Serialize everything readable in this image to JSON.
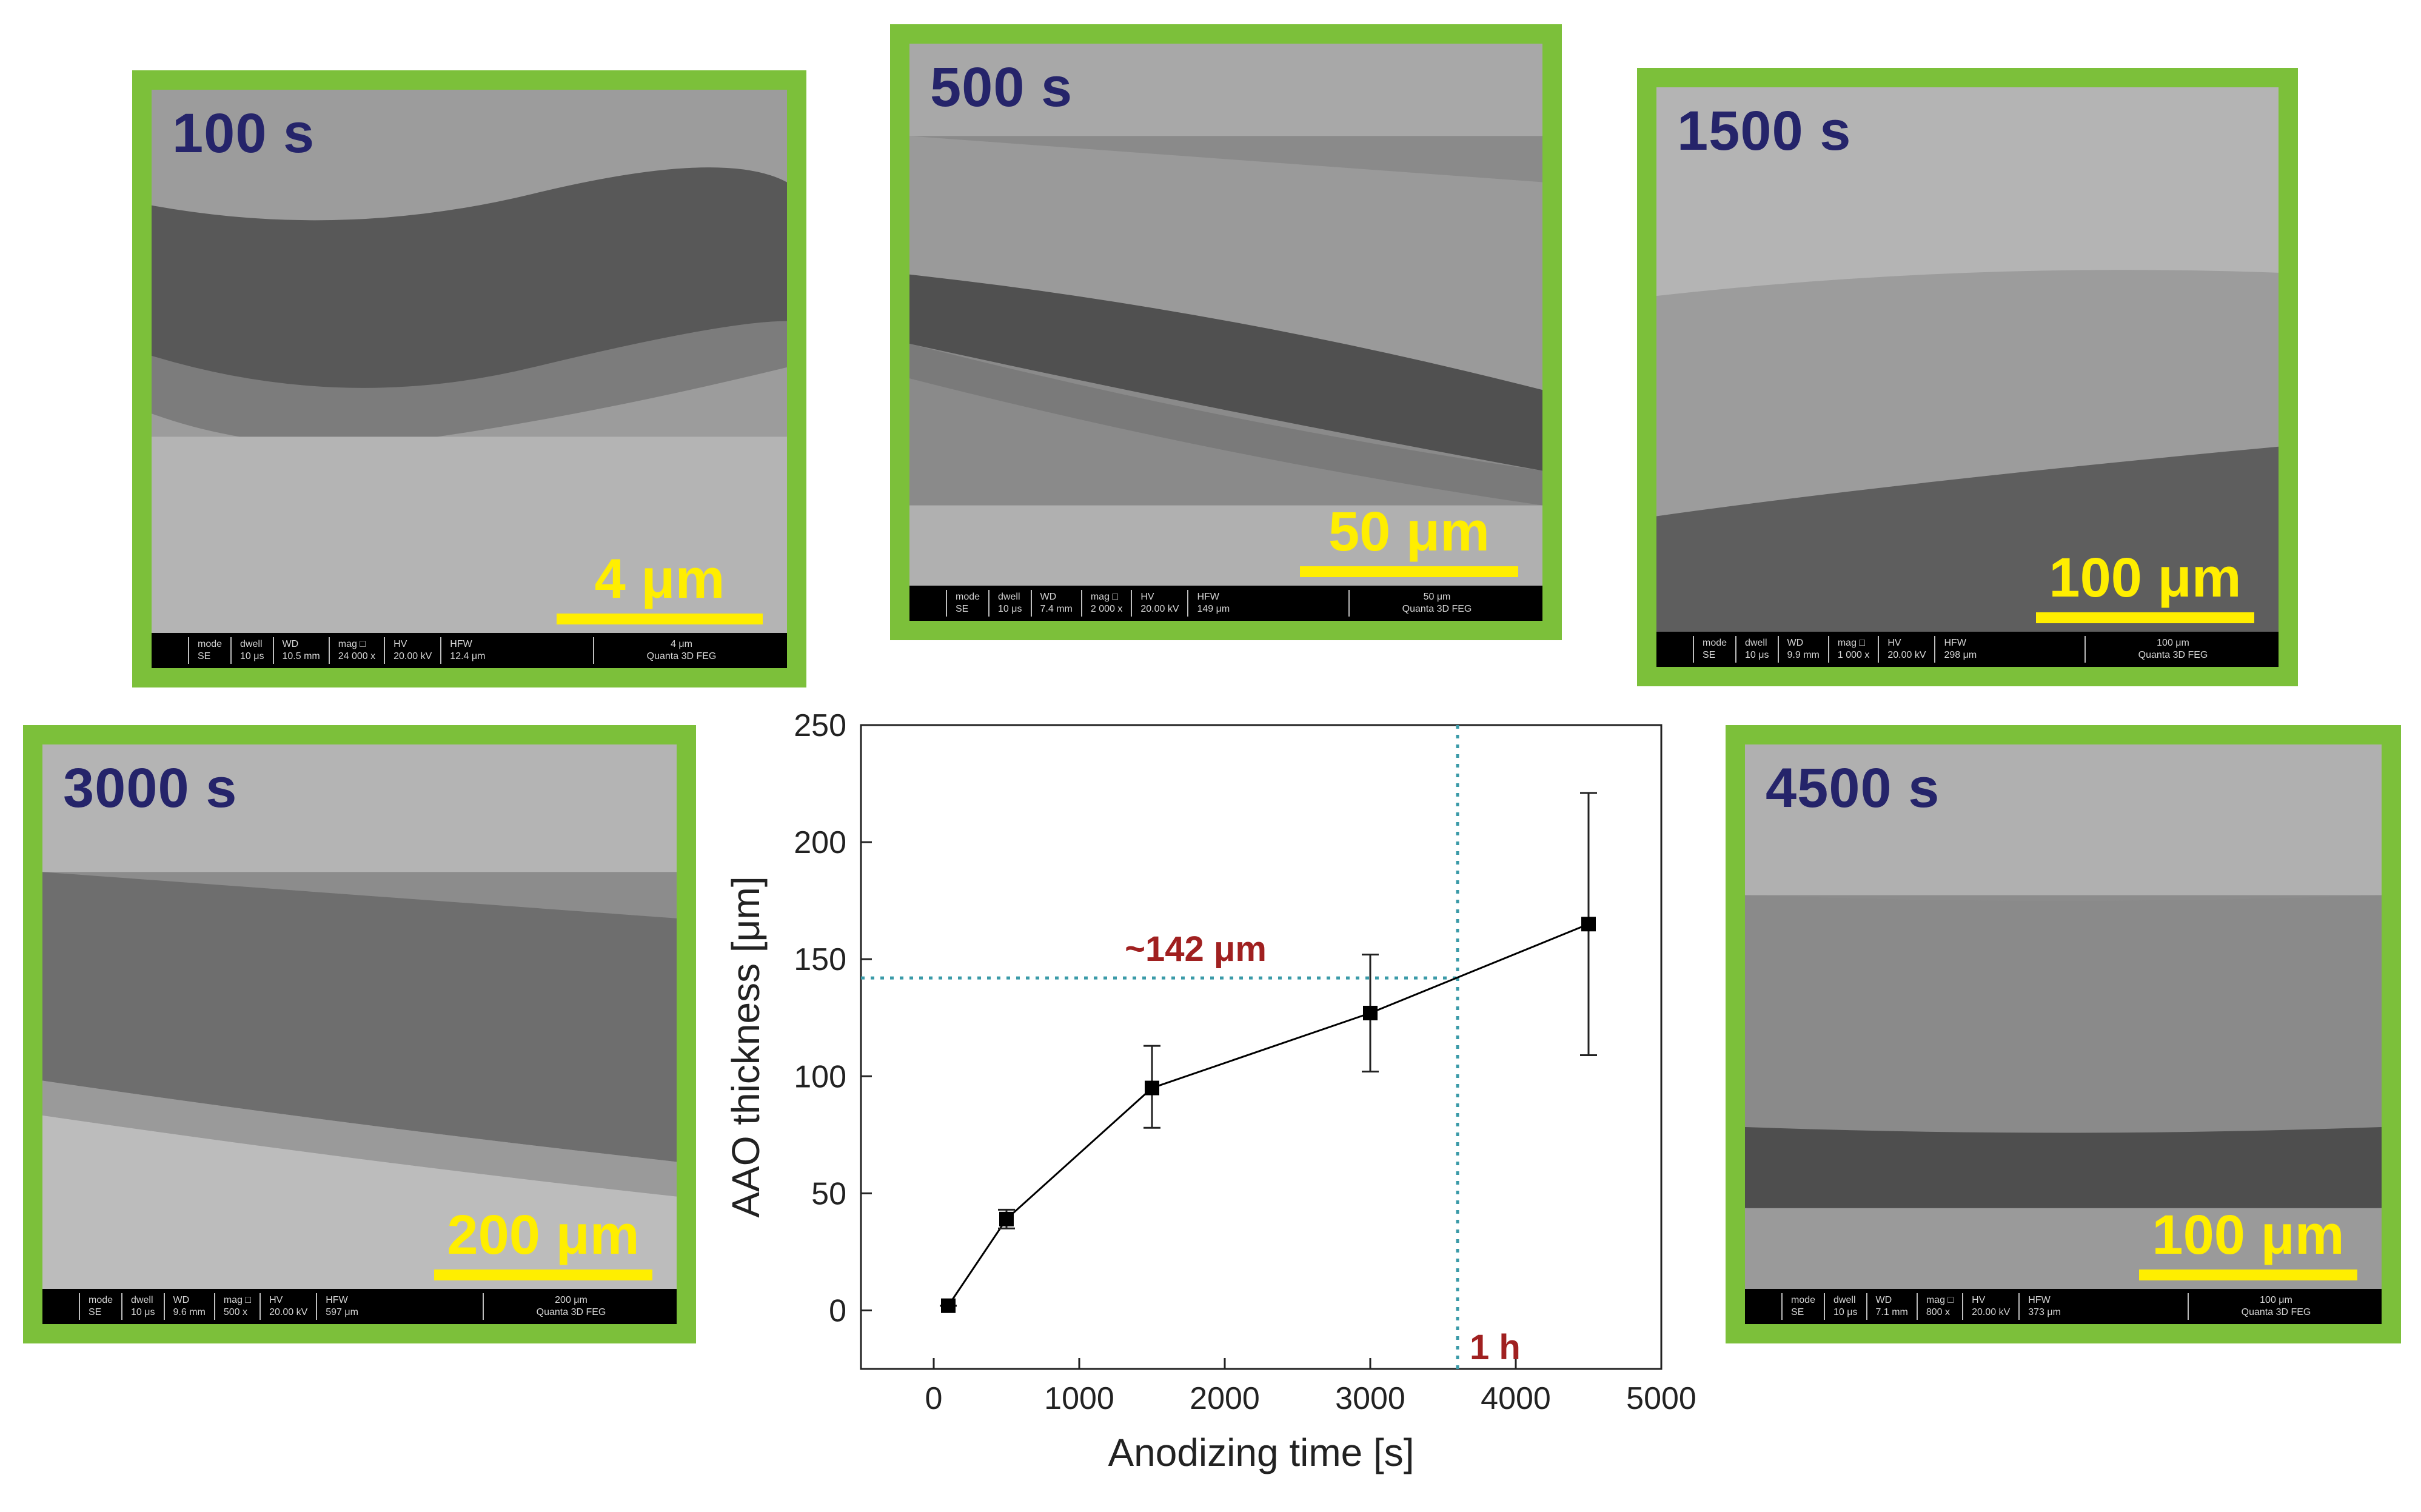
{
  "panels": [
    {
      "time": "100 s",
      "scale": "4 μm",
      "databar": {
        "mode": [
          "mode",
          "SE"
        ],
        "dwell": [
          "dwell",
          "10 μs"
        ],
        "wd": [
          "WD",
          "10.5 mm"
        ],
        "mag": [
          "mag □",
          "24 000 x"
        ],
        "hv": [
          "HV",
          "20.00 kV"
        ],
        "hfw": [
          "HFW",
          "12.4 μm"
        ],
        "scale": "4 μm",
        "instrument": "Quanta 3D FEG"
      }
    },
    {
      "time": "500 s",
      "scale": "50 μm",
      "databar": {
        "mode": [
          "mode",
          "SE"
        ],
        "dwell": [
          "dwell",
          "10 μs"
        ],
        "wd": [
          "WD",
          "7.4 mm"
        ],
        "mag": [
          "mag □",
          "2 000 x"
        ],
        "hv": [
          "HV",
          "20.00 kV"
        ],
        "hfw": [
          "HFW",
          "149 μm"
        ],
        "scale": "50 μm",
        "instrument": "Quanta 3D FEG"
      }
    },
    {
      "time": "1500 s",
      "scale": "100 μm",
      "databar": {
        "mode": [
          "mode",
          "SE"
        ],
        "dwell": [
          "dwell",
          "10 μs"
        ],
        "wd": [
          "WD",
          "9.9 mm"
        ],
        "mag": [
          "mag □",
          "1 000 x"
        ],
        "hv": [
          "HV",
          "20.00 kV"
        ],
        "hfw": [
          "HFW",
          "298 μm"
        ],
        "scale": "100 μm",
        "instrument": "Quanta 3D FEG"
      }
    },
    {
      "time": "3000 s",
      "scale": "200 μm",
      "databar": {
        "mode": [
          "mode",
          "SE"
        ],
        "dwell": [
          "dwell",
          "10 μs"
        ],
        "wd": [
          "WD",
          "9.6 mm"
        ],
        "mag": [
          "mag □",
          "500 x"
        ],
        "hv": [
          "HV",
          "20.00 kV"
        ],
        "hfw": [
          "HFW",
          "597 μm"
        ],
        "scale": "200 μm",
        "instrument": "Quanta 3D FEG"
      }
    },
    {
      "time": "4500 s",
      "scale": "100 μm",
      "databar": {
        "mode": [
          "mode",
          "SE"
        ],
        "dwell": [
          "dwell",
          "10 μs"
        ],
        "wd": [
          "WD",
          "7.1 mm"
        ],
        "mag": [
          "mag □",
          "800 x"
        ],
        "hv": [
          "HV",
          "20.00 kV"
        ],
        "hfw": [
          "HFW",
          "373 μm"
        ],
        "scale": "100 μm",
        "instrument": "Quanta 3D FEG"
      }
    }
  ],
  "colors": {
    "frame": "#7cc03a",
    "time_label": "#25246a",
    "scale_bar": "#ffee00",
    "annotation": "#a02020",
    "guide_line": "#3a9aa8",
    "series": "#000000"
  },
  "chart_data": {
    "type": "scatter",
    "xlabel": "Anodizing time [s]",
    "ylabel": "AAO thickness [μm]",
    "xlim": [
      -500,
      5000
    ],
    "ylim": [
      -25,
      250
    ],
    "xticks": [
      0,
      1000,
      2000,
      3000,
      4000,
      5000
    ],
    "yticks": [
      0,
      50,
      100,
      150,
      200,
      250
    ],
    "grid": false,
    "series": [
      {
        "x": [
          100,
          500,
          1500,
          3000,
          4500
        ],
        "y": [
          2,
          39,
          95,
          127,
          165
        ],
        "yerr_low": [
          2,
          35,
          78,
          102,
          109
        ],
        "yerr_high": [
          2,
          43,
          113,
          152,
          221
        ],
        "marker": "square",
        "line": "solid"
      }
    ],
    "annotations": [
      {
        "text": "~142 μm",
        "x": 1800,
        "y": 142,
        "kind": "horizontal-guide",
        "value": 142
      },
      {
        "text": "1 h",
        "x": 3600,
        "y": -25,
        "kind": "vertical-guide",
        "value": 3600
      }
    ]
  }
}
